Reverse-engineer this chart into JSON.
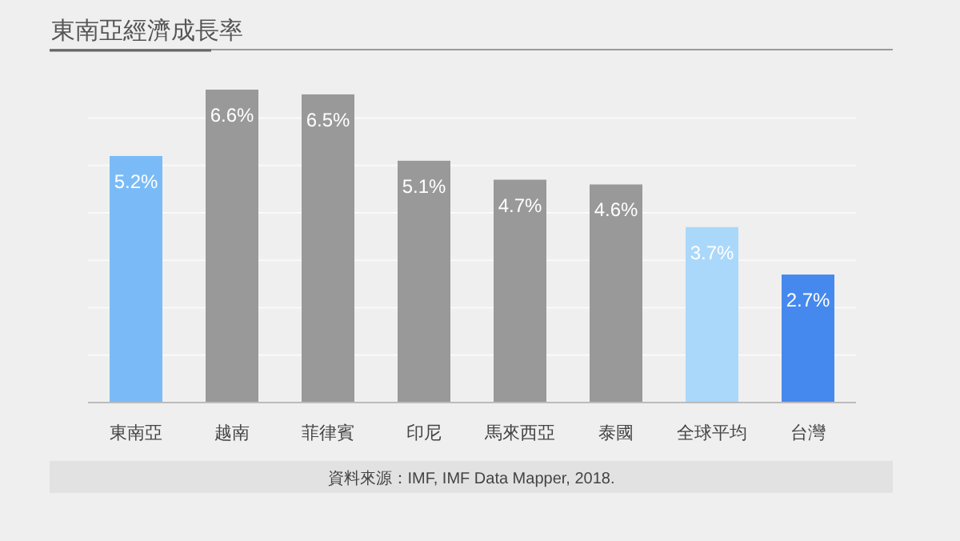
{
  "chart_data": {
    "type": "bar",
    "title": "東南亞經濟成長率",
    "categories": [
      "東南亞",
      "越南",
      "菲律賓",
      "印尼",
      "馬來西亞",
      "泰國",
      "全球平均",
      "台灣"
    ],
    "values": [
      5.2,
      6.6,
      6.5,
      5.1,
      4.7,
      4.6,
      3.7,
      2.7
    ],
    "colors": [
      "#7abbf7",
      "#999999",
      "#999999",
      "#999999",
      "#999999",
      "#999999",
      "#aad8fa",
      "#4689ee"
    ],
    "value_labels": [
      "5.2%",
      "6.6%",
      "6.5%",
      "5.1%",
      "4.7%",
      "4.6%",
      "3.7%",
      "2.7%"
    ],
    "yticks": [
      {
        "value": 1,
        "label": null
      },
      {
        "value": 2,
        "label": null
      },
      {
        "value": 3,
        "label": null
      },
      {
        "value": 4,
        "label": null
      },
      {
        "value": 5,
        "label": null
      },
      {
        "value": 6,
        "label": null
      }
    ],
    "grid": "y",
    "tick_labels": "x",
    "annotations": [
      "資料來源：IMF, IMF Data Mapper, 2018."
    ]
  }
}
